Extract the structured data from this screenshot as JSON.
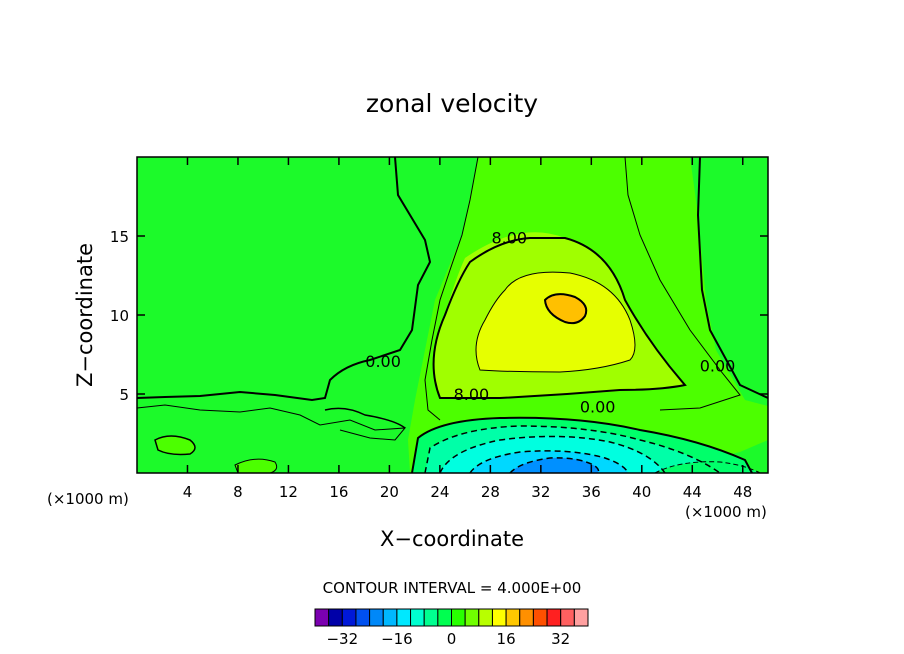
{
  "chart_data": {
    "type": "heatmap",
    "title": "zonal velocity",
    "xlabel": "X−coordinate",
    "ylabel": "Z−coordinate",
    "x_unit_left": "(×1000 m)",
    "x_unit_right": "(×1000 m)",
    "xlim": [
      0,
      50
    ],
    "ylim": [
      0,
      20
    ],
    "x_ticks": [
      4,
      8,
      12,
      16,
      20,
      24,
      28,
      32,
      36,
      40,
      44,
      48
    ],
    "y_ticks": [
      5,
      10,
      15
    ],
    "contour_interval_label": "CONTOUR INTERVAL = 4.000E+00",
    "contour_interval": 4,
    "contour_labels": [
      {
        "text": "8.00",
        "x": 29.5,
        "y": 14.9
      },
      {
        "text": "0.00",
        "x": 19.5,
        "y": 7.1
      },
      {
        "text": "8.00",
        "x": 26.5,
        "y": 5.0
      },
      {
        "text": "0.00",
        "x": 36.5,
        "y": 4.2
      },
      {
        "text": "0.00",
        "x": 46.0,
        "y": 6.8
      }
    ],
    "colorbar": {
      "levels": [
        -36,
        -32,
        -28,
        -24,
        -20,
        -16,
        -12,
        -8,
        -4,
        0,
        4,
        8,
        12,
        16,
        20,
        24,
        28,
        32,
        36
      ],
      "tick_labels": [
        "−32",
        "−16",
        "0",
        "16",
        "32"
      ],
      "tick_values": [
        -32,
        -16,
        0,
        16,
        32
      ],
      "colors": [
        "#7b00b0",
        "#0000a8",
        "#0018d8",
        "#0050f0",
        "#0088f8",
        "#00b8ff",
        "#00e8ff",
        "#00ffd0",
        "#00ff90",
        "#00ff50",
        "#28ff00",
        "#70ff00",
        "#b8ff00",
        "#ffff00",
        "#ffc800",
        "#ff9000",
        "#ff5000",
        "#ff2020",
        "#ff6060",
        "#ffa0a0"
      ]
    },
    "field_regions": [
      {
        "name": "background",
        "level": 0,
        "color": "#1cfa2a"
      },
      {
        "name": "jet-upper",
        "level": 4,
        "color": "#4cff00"
      },
      {
        "name": "jet-core",
        "level": 8,
        "color": "#a0ff00"
      },
      {
        "name": "jet-max",
        "level": 12,
        "color": "#e6ff00"
      },
      {
        "name": "jet-peak",
        "level": 16,
        "color": "#ffc000"
      },
      {
        "name": "surface-negative-1",
        "level": -4,
        "color": "#00ff6a"
      },
      {
        "name": "surface-negative-2",
        "level": -8,
        "color": "#00ffa8"
      },
      {
        "name": "surface-negative-3",
        "level": -12,
        "color": "#00ffe0"
      },
      {
        "name": "surface-negative-4",
        "level": -16,
        "color": "#00d8ff"
      },
      {
        "name": "surface-negative-5",
        "level": -20,
        "color": "#0090ff"
      }
    ]
  }
}
